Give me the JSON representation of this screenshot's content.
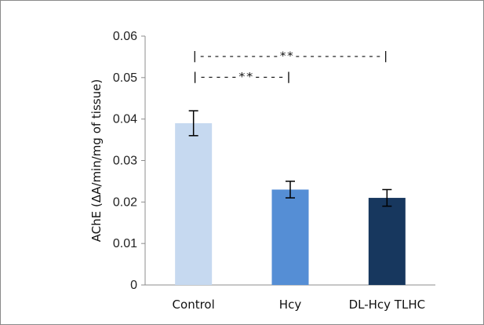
{
  "chart_data": {
    "type": "bar",
    "title": "",
    "xlabel": "",
    "ylabel": "AChE (ΔA/min/mg of tissue)",
    "categories": [
      "Control",
      "Hcy",
      "DL-Hcy TLHC"
    ],
    "values": [
      0.039,
      0.023,
      0.021
    ],
    "errors": [
      0.003,
      0.002,
      0.002
    ],
    "colors": [
      "#c6d9f0",
      "#558ed5",
      "#17375e"
    ],
    "ylim": [
      0,
      0.06
    ],
    "yticks": [
      "0",
      "0.01",
      "0.02",
      "0.03",
      "0.04",
      "0.05",
      "0.06"
    ],
    "grid": false,
    "legend": "none",
    "annotations": [
      {
        "text": "|-----------**------------|",
        "from": "Control",
        "to": "DL-Hcy TLHC",
        "y": 0.056
      },
      {
        "text": "|-----**----|",
        "from": "Control",
        "to": "Hcy",
        "y": 0.051
      }
    ]
  }
}
